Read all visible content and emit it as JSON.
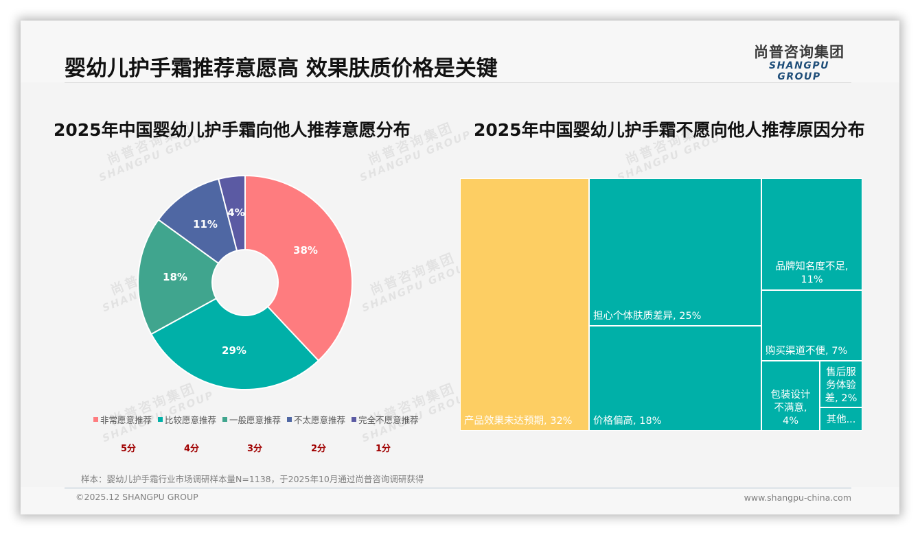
{
  "header": {
    "title": "婴幼儿护手霜推荐意愿高 效果肤质价格是关键",
    "logo_cn": "尚普咨询集团",
    "logo_en": "SHANGPU GROUP"
  },
  "watermark": {
    "cn": "尚普咨询集团",
    "en": "SHANGPU GROUP"
  },
  "chart_data": [
    {
      "type": "pie",
      "variant": "donut",
      "title": "2025年中国婴幼儿护手霜向他人推荐意愿分布",
      "categories": [
        "非常愿意推荐",
        "比较愿意推荐",
        "一般愿意推荐",
        "不太愿意推荐",
        "完全不愿意推荐"
      ],
      "values": [
        38,
        29,
        18,
        11,
        4
      ],
      "labels": [
        "38%",
        "29%",
        "18%",
        "11%",
        "4%"
      ],
      "colors": [
        "#fe7c7f",
        "#00b0a8",
        "#40a58e",
        "#4f67a3",
        "#5b5aa3"
      ],
      "scores": [
        "5分",
        "4分",
        "3分",
        "2分",
        "1分"
      ],
      "legend_position": "bottom"
    },
    {
      "type": "treemap",
      "title": "2025年中国婴幼儿护手霜不愿向他人推荐原因分布",
      "categories": [
        "产品效果未达预期",
        "担心个体肤质差异",
        "价格偏高",
        "品牌知名度不足",
        "购买渠道不便",
        "包装设计不满意",
        "售后服务体验差",
        "其他"
      ],
      "values": [
        32,
        25,
        18,
        11,
        7,
        4,
        2,
        1
      ],
      "labels": [
        "产品效果未达预期, 32%",
        "担心个体肤质差异, 25%",
        "价格偏高, 18%",
        "品牌知名度不足, 11%",
        "购买渠道不便, 7%",
        "包装设计不满意, 4%",
        "售后服务体验差, 2%",
        "其他..."
      ],
      "colors": {
        "highlight": "#fdce63",
        "default": "#00b0a8"
      }
    }
  ],
  "labels": {
    "tm_0": "产品效果未达预期, 32%",
    "tm_1": "担心个体肤质差异, 25%",
    "tm_2": "价格偏高, 18%",
    "tm_3a": "品牌知名度不足,",
    "tm_3b": "11%",
    "tm_4": "购买渠道不便, 7%",
    "tm_5a": "包装设计",
    "tm_5b": "不满意,",
    "tm_5c": "4%",
    "tm_6a": "售后服",
    "tm_6b": "务体验",
    "tm_6c": "差, 2%",
    "tm_7": "其他..."
  },
  "footer": {
    "note": "样本：婴幼儿护手霜行业市场调研样本量N=1138，于2025年10月通过尚普咨询调研获得",
    "copyright": "©2025.12 SHANGPU GROUP",
    "website": "www.shangpu-china.com"
  }
}
